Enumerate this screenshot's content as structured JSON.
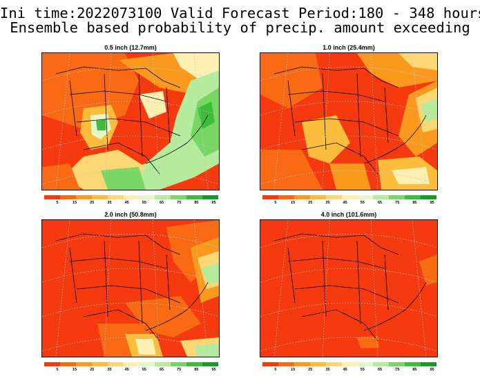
{
  "header": {
    "line1": "Ini time:2022073100  Valid Forecast Period:180 - 348 hours",
    "line2": "Ensemble based probability of precip. amount exceeding"
  },
  "panels": [
    {
      "title": "0.5 inch (12.7mm)"
    },
    {
      "title": "1.0 inch (25.4mm)"
    },
    {
      "title": "2.0 inch (50.8mm)"
    },
    {
      "title": "4.0 inch (101.6mm)"
    }
  ],
  "colorbar": {
    "colors": [
      "#f53a10",
      "#f86a14",
      "#f99a1e",
      "#fcbd3c",
      "#fcd773",
      "#fdf0b0",
      "#e6f7c7",
      "#b4eb9c",
      "#78d764",
      "#3cbe3c",
      "#169a28"
    ],
    "labels": [
      "",
      "5",
      "15",
      "25",
      "35",
      "45",
      "55",
      "65",
      "75",
      "85",
      "95"
    ]
  }
}
